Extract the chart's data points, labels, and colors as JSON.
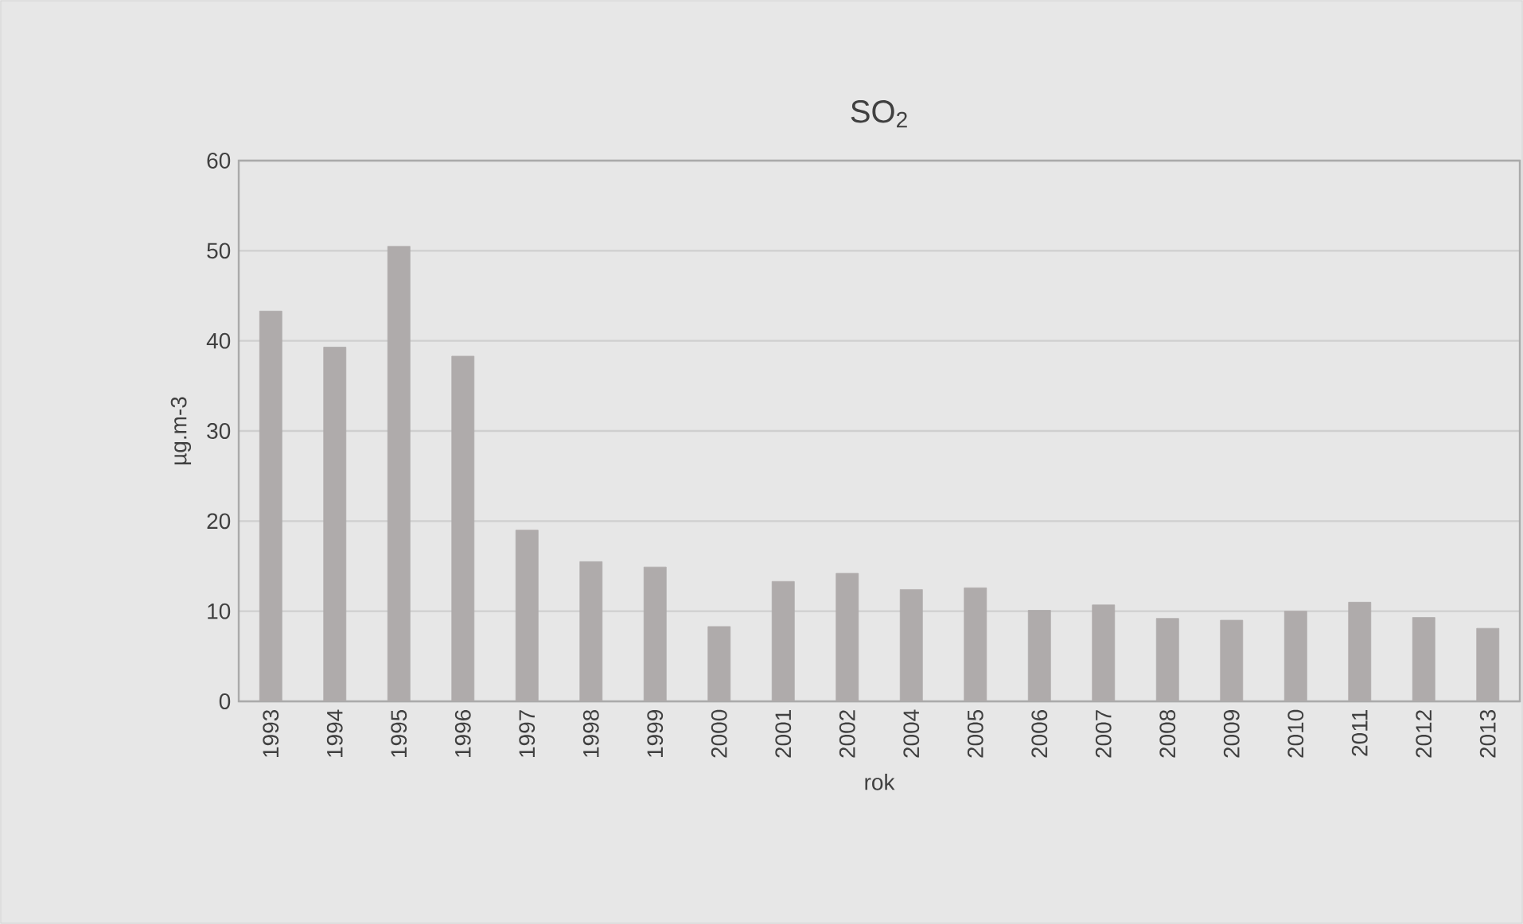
{
  "chart_data": {
    "type": "bar",
    "title": "SO$_{2}$",
    "xlabel": "rok",
    "ylabel": "µg.m-3",
    "categories": [
      "1993",
      "1994",
      "1995",
      "1996",
      "1997",
      "1998",
      "1999",
      "2000",
      "2001",
      "2002",
      "2004",
      "2005",
      "2006",
      "2007",
      "2008",
      "2009",
      "2010",
      "2011",
      "2012",
      "2013"
    ],
    "values": [
      43.3,
      39.3,
      50.5,
      38.3,
      19.0,
      15.5,
      14.9,
      8.3,
      13.3,
      14.2,
      12.4,
      12.6,
      10.1,
      10.7,
      9.2,
      9.0,
      10.0,
      11.0,
      9.3,
      8.1
    ],
    "color": "#afabab",
    "ylim": [
      0,
      60
    ],
    "yticks": [
      0,
      10,
      20,
      30,
      40,
      50,
      60
    ],
    "grid": "y"
  }
}
